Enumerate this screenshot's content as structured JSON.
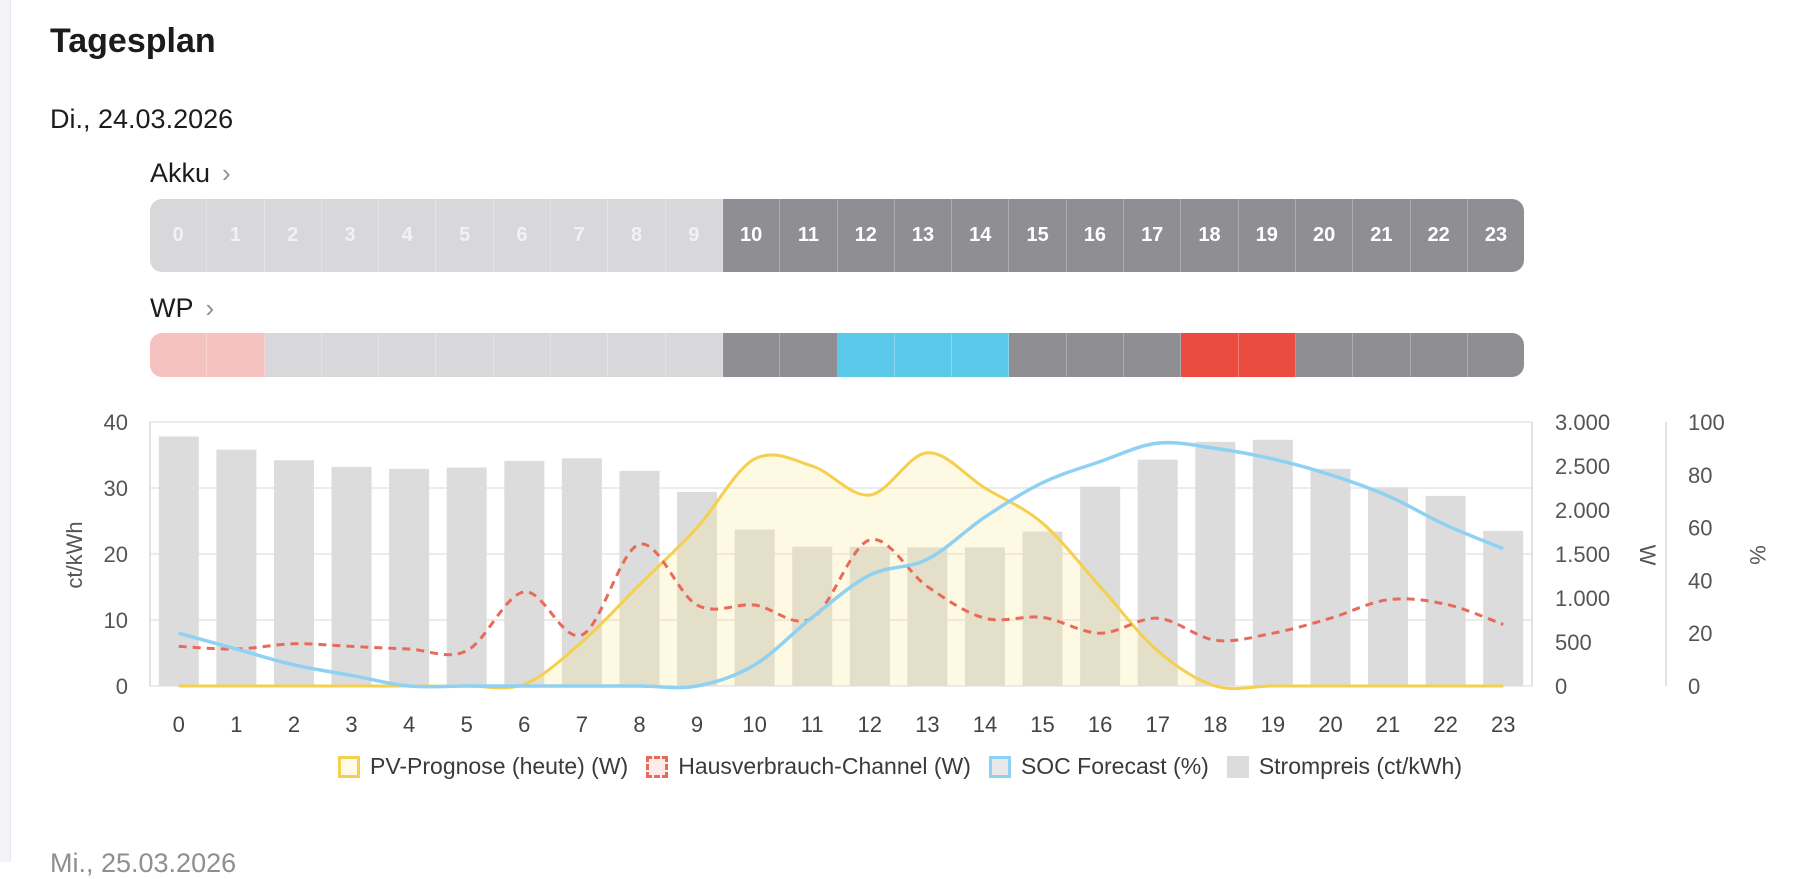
{
  "page": {
    "title": "Tagesplan"
  },
  "day": {
    "date": "Di., 24.03.2026"
  },
  "next_day": {
    "date": "Mi., 25.03.2026"
  },
  "akku": {
    "label": "Akku",
    "chevron": "›",
    "cells": [
      {
        "h": "0",
        "s": "light"
      },
      {
        "h": "1",
        "s": "light"
      },
      {
        "h": "2",
        "s": "light"
      },
      {
        "h": "3",
        "s": "light"
      },
      {
        "h": "4",
        "s": "light"
      },
      {
        "h": "5",
        "s": "light"
      },
      {
        "h": "6",
        "s": "light"
      },
      {
        "h": "7",
        "s": "light"
      },
      {
        "h": "8",
        "s": "light"
      },
      {
        "h": "9",
        "s": "light"
      },
      {
        "h": "10",
        "s": "dark"
      },
      {
        "h": "11",
        "s": "dark"
      },
      {
        "h": "12",
        "s": "dark"
      },
      {
        "h": "13",
        "s": "dark"
      },
      {
        "h": "14",
        "s": "dark"
      },
      {
        "h": "15",
        "s": "dark"
      },
      {
        "h": "16",
        "s": "dark"
      },
      {
        "h": "17",
        "s": "dark"
      },
      {
        "h": "18",
        "s": "dark"
      },
      {
        "h": "19",
        "s": "dark"
      },
      {
        "h": "20",
        "s": "dark"
      },
      {
        "h": "21",
        "s": "dark"
      },
      {
        "h": "22",
        "s": "dark"
      },
      {
        "h": "23",
        "s": "dark"
      }
    ]
  },
  "wp": {
    "label": "WP",
    "chevron": "›",
    "cells": [
      "pink",
      "pink",
      "light",
      "light",
      "light",
      "light",
      "light",
      "light",
      "light",
      "light",
      "dark",
      "dark",
      "blue",
      "blue",
      "blue",
      "dark",
      "dark",
      "dark",
      "red",
      "red",
      "dark",
      "dark",
      "dark",
      "dark"
    ]
  },
  "colors": {
    "light": "#d8d8da",
    "dark": "#8e8e93",
    "pink": "#f6c2c0",
    "blue": "#5ac8e8",
    "red": "#ea4c3f",
    "light_text": "#f2f2f4",
    "pv": "#f5cf4e",
    "house": "#e9695a",
    "soc": "#8fd1f2",
    "price": "#dcdcdc"
  },
  "chart_data": {
    "type": "bar",
    "categories": [
      "0",
      "1",
      "2",
      "3",
      "4",
      "5",
      "6",
      "7",
      "8",
      "9",
      "10",
      "11",
      "12",
      "13",
      "14",
      "15",
      "16",
      "17",
      "18",
      "19",
      "20",
      "21",
      "22",
      "23"
    ],
    "axes": {
      "price": {
        "label": "ct/kWh",
        "range": [
          0,
          40
        ],
        "ticks": [
          "0",
          "10",
          "20",
          "30",
          "40"
        ]
      },
      "power": {
        "label": "W",
        "range": [
          0,
          3000
        ],
        "ticks": [
          "0",
          "500",
          "1.000",
          "1.500",
          "2.000",
          "2.500",
          "3.000"
        ]
      },
      "soc": {
        "label": "%",
        "range": [
          0,
          100
        ],
        "ticks": [
          "0",
          "20",
          "40",
          "60",
          "80",
          "100"
        ]
      }
    },
    "series": [
      {
        "name": "PV-Prognose (heute) (W)",
        "type": "area",
        "axis": "power",
        "values": [
          0,
          0,
          0,
          0,
          0,
          0,
          20,
          500,
          1150,
          1800,
          2580,
          2500,
          2170,
          2650,
          2250,
          1850,
          1130,
          400,
          0,
          0,
          0,
          0,
          0,
          0
        ]
      },
      {
        "name": "Hausverbrauch-Channel (W)",
        "type": "line-dashed",
        "axis": "power",
        "values": [
          450,
          420,
          480,
          450,
          420,
          400,
          1070,
          580,
          1610,
          920,
          920,
          770,
          1660,
          1130,
          770,
          780,
          600,
          770,
          520,
          600,
          770,
          980,
          930,
          700
        ]
      },
      {
        "name": "SOC Forecast (%)",
        "type": "line",
        "axis": "soc",
        "values": [
          20,
          14,
          8,
          4,
          0,
          0,
          0,
          0,
          0,
          0,
          8,
          26,
          42,
          48,
          64,
          77,
          85,
          92,
          90,
          86,
          80,
          72,
          61,
          52
        ]
      },
      {
        "name": "Strompreis (ct/kWh)",
        "type": "bar",
        "axis": "price",
        "values": [
          37.8,
          35.8,
          34.2,
          33.2,
          32.9,
          33.1,
          34.1,
          34.5,
          32.6,
          29.4,
          23.7,
          21.1,
          21.1,
          21.0,
          21.0,
          23.4,
          30.2,
          34.3,
          37.0,
          37.3,
          32.9,
          30.1,
          28.8,
          23.5
        ]
      }
    ],
    "legend": {
      "position": "bottom"
    },
    "grid": true
  }
}
